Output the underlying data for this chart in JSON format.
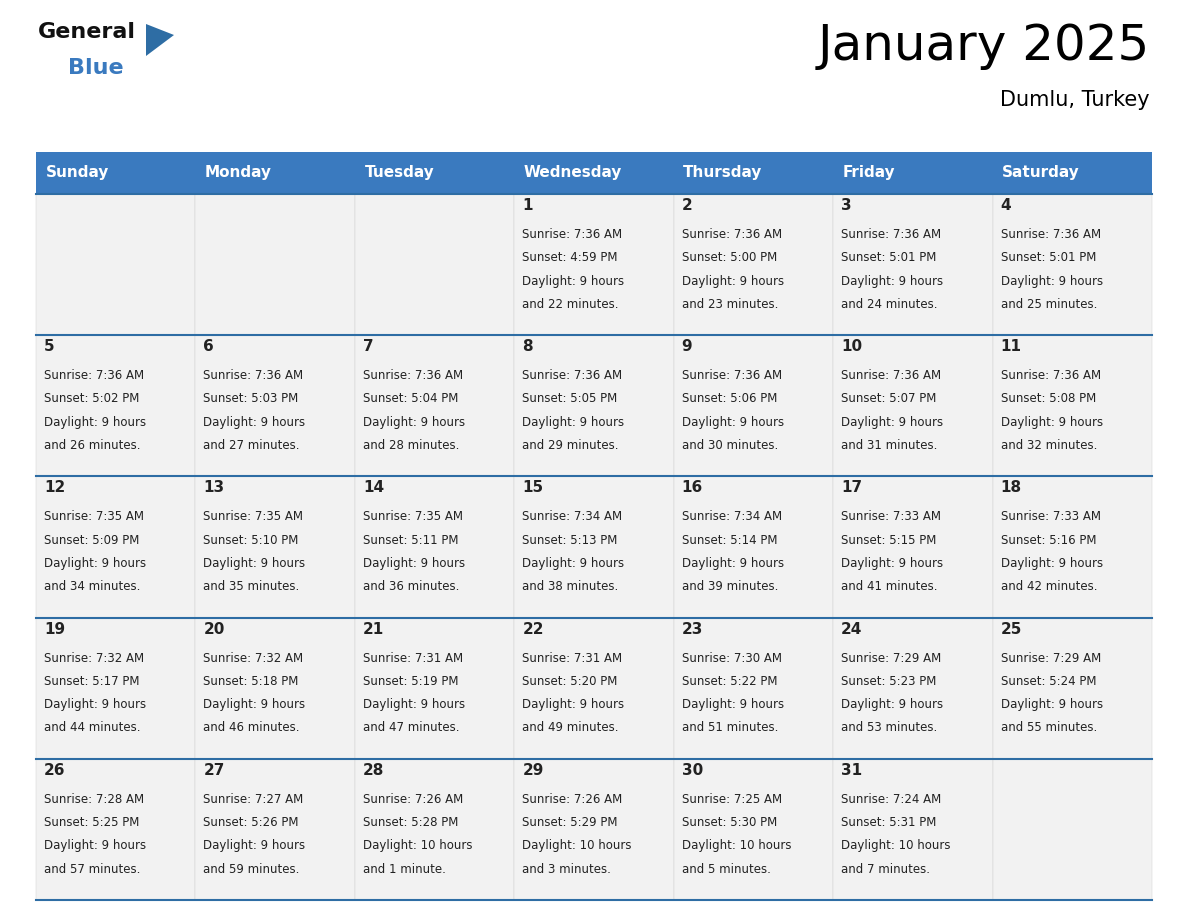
{
  "title": "January 2025",
  "subtitle": "Dumlu, Turkey",
  "header_color": "#3a7abf",
  "header_text_color": "#ffffff",
  "cell_bg_color": "#f2f2f2",
  "border_color": "#2e6da4",
  "text_color": "#222222",
  "days_of_week": [
    "Sunday",
    "Monday",
    "Tuesday",
    "Wednesday",
    "Thursday",
    "Friday",
    "Saturday"
  ],
  "calendar_data": [
    [
      {
        "day": null,
        "sunrise": null,
        "sunset": null,
        "daylight_line1": null,
        "daylight_line2": null
      },
      {
        "day": null,
        "sunrise": null,
        "sunset": null,
        "daylight_line1": null,
        "daylight_line2": null
      },
      {
        "day": null,
        "sunrise": null,
        "sunset": null,
        "daylight_line1": null,
        "daylight_line2": null
      },
      {
        "day": "1",
        "sunrise": "Sunrise: 7:36 AM",
        "sunset": "Sunset: 4:59 PM",
        "daylight_line1": "Daylight: 9 hours",
        "daylight_line2": "and 22 minutes."
      },
      {
        "day": "2",
        "sunrise": "Sunrise: 7:36 AM",
        "sunset": "Sunset: 5:00 PM",
        "daylight_line1": "Daylight: 9 hours",
        "daylight_line2": "and 23 minutes."
      },
      {
        "day": "3",
        "sunrise": "Sunrise: 7:36 AM",
        "sunset": "Sunset: 5:01 PM",
        "daylight_line1": "Daylight: 9 hours",
        "daylight_line2": "and 24 minutes."
      },
      {
        "day": "4",
        "sunrise": "Sunrise: 7:36 AM",
        "sunset": "Sunset: 5:01 PM",
        "daylight_line1": "Daylight: 9 hours",
        "daylight_line2": "and 25 minutes."
      }
    ],
    [
      {
        "day": "5",
        "sunrise": "Sunrise: 7:36 AM",
        "sunset": "Sunset: 5:02 PM",
        "daylight_line1": "Daylight: 9 hours",
        "daylight_line2": "and 26 minutes."
      },
      {
        "day": "6",
        "sunrise": "Sunrise: 7:36 AM",
        "sunset": "Sunset: 5:03 PM",
        "daylight_line1": "Daylight: 9 hours",
        "daylight_line2": "and 27 minutes."
      },
      {
        "day": "7",
        "sunrise": "Sunrise: 7:36 AM",
        "sunset": "Sunset: 5:04 PM",
        "daylight_line1": "Daylight: 9 hours",
        "daylight_line2": "and 28 minutes."
      },
      {
        "day": "8",
        "sunrise": "Sunrise: 7:36 AM",
        "sunset": "Sunset: 5:05 PM",
        "daylight_line1": "Daylight: 9 hours",
        "daylight_line2": "and 29 minutes."
      },
      {
        "day": "9",
        "sunrise": "Sunrise: 7:36 AM",
        "sunset": "Sunset: 5:06 PM",
        "daylight_line1": "Daylight: 9 hours",
        "daylight_line2": "and 30 minutes."
      },
      {
        "day": "10",
        "sunrise": "Sunrise: 7:36 AM",
        "sunset": "Sunset: 5:07 PM",
        "daylight_line1": "Daylight: 9 hours",
        "daylight_line2": "and 31 minutes."
      },
      {
        "day": "11",
        "sunrise": "Sunrise: 7:36 AM",
        "sunset": "Sunset: 5:08 PM",
        "daylight_line1": "Daylight: 9 hours",
        "daylight_line2": "and 32 minutes."
      }
    ],
    [
      {
        "day": "12",
        "sunrise": "Sunrise: 7:35 AM",
        "sunset": "Sunset: 5:09 PM",
        "daylight_line1": "Daylight: 9 hours",
        "daylight_line2": "and 34 minutes."
      },
      {
        "day": "13",
        "sunrise": "Sunrise: 7:35 AM",
        "sunset": "Sunset: 5:10 PM",
        "daylight_line1": "Daylight: 9 hours",
        "daylight_line2": "and 35 minutes."
      },
      {
        "day": "14",
        "sunrise": "Sunrise: 7:35 AM",
        "sunset": "Sunset: 5:11 PM",
        "daylight_line1": "Daylight: 9 hours",
        "daylight_line2": "and 36 minutes."
      },
      {
        "day": "15",
        "sunrise": "Sunrise: 7:34 AM",
        "sunset": "Sunset: 5:13 PM",
        "daylight_line1": "Daylight: 9 hours",
        "daylight_line2": "and 38 minutes."
      },
      {
        "day": "16",
        "sunrise": "Sunrise: 7:34 AM",
        "sunset": "Sunset: 5:14 PM",
        "daylight_line1": "Daylight: 9 hours",
        "daylight_line2": "and 39 minutes."
      },
      {
        "day": "17",
        "sunrise": "Sunrise: 7:33 AM",
        "sunset": "Sunset: 5:15 PM",
        "daylight_line1": "Daylight: 9 hours",
        "daylight_line2": "and 41 minutes."
      },
      {
        "day": "18",
        "sunrise": "Sunrise: 7:33 AM",
        "sunset": "Sunset: 5:16 PM",
        "daylight_line1": "Daylight: 9 hours",
        "daylight_line2": "and 42 minutes."
      }
    ],
    [
      {
        "day": "19",
        "sunrise": "Sunrise: 7:32 AM",
        "sunset": "Sunset: 5:17 PM",
        "daylight_line1": "Daylight: 9 hours",
        "daylight_line2": "and 44 minutes."
      },
      {
        "day": "20",
        "sunrise": "Sunrise: 7:32 AM",
        "sunset": "Sunset: 5:18 PM",
        "daylight_line1": "Daylight: 9 hours",
        "daylight_line2": "and 46 minutes."
      },
      {
        "day": "21",
        "sunrise": "Sunrise: 7:31 AM",
        "sunset": "Sunset: 5:19 PM",
        "daylight_line1": "Daylight: 9 hours",
        "daylight_line2": "and 47 minutes."
      },
      {
        "day": "22",
        "sunrise": "Sunrise: 7:31 AM",
        "sunset": "Sunset: 5:20 PM",
        "daylight_line1": "Daylight: 9 hours",
        "daylight_line2": "and 49 minutes."
      },
      {
        "day": "23",
        "sunrise": "Sunrise: 7:30 AM",
        "sunset": "Sunset: 5:22 PM",
        "daylight_line1": "Daylight: 9 hours",
        "daylight_line2": "and 51 minutes."
      },
      {
        "day": "24",
        "sunrise": "Sunrise: 7:29 AM",
        "sunset": "Sunset: 5:23 PM",
        "daylight_line1": "Daylight: 9 hours",
        "daylight_line2": "and 53 minutes."
      },
      {
        "day": "25",
        "sunrise": "Sunrise: 7:29 AM",
        "sunset": "Sunset: 5:24 PM",
        "daylight_line1": "Daylight: 9 hours",
        "daylight_line2": "and 55 minutes."
      }
    ],
    [
      {
        "day": "26",
        "sunrise": "Sunrise: 7:28 AM",
        "sunset": "Sunset: 5:25 PM",
        "daylight_line1": "Daylight: 9 hours",
        "daylight_line2": "and 57 minutes."
      },
      {
        "day": "27",
        "sunrise": "Sunrise: 7:27 AM",
        "sunset": "Sunset: 5:26 PM",
        "daylight_line1": "Daylight: 9 hours",
        "daylight_line2": "and 59 minutes."
      },
      {
        "day": "28",
        "sunrise": "Sunrise: 7:26 AM",
        "sunset": "Sunset: 5:28 PM",
        "daylight_line1": "Daylight: 10 hours",
        "daylight_line2": "and 1 minute."
      },
      {
        "day": "29",
        "sunrise": "Sunrise: 7:26 AM",
        "sunset": "Sunset: 5:29 PM",
        "daylight_line1": "Daylight: 10 hours",
        "daylight_line2": "and 3 minutes."
      },
      {
        "day": "30",
        "sunrise": "Sunrise: 7:25 AM",
        "sunset": "Sunset: 5:30 PM",
        "daylight_line1": "Daylight: 10 hours",
        "daylight_line2": "and 5 minutes."
      },
      {
        "day": "31",
        "sunrise": "Sunrise: 7:24 AM",
        "sunset": "Sunset: 5:31 PM",
        "daylight_line1": "Daylight: 10 hours",
        "daylight_line2": "and 7 minutes."
      },
      {
        "day": null,
        "sunrise": null,
        "sunset": null,
        "daylight_line1": null,
        "daylight_line2": null
      }
    ]
  ],
  "logo_general_color": "#111111",
  "logo_blue_color": "#3a7abf",
  "logo_triangle_color": "#2e6da4",
  "title_fontsize": 36,
  "subtitle_fontsize": 15,
  "header_fontsize": 11,
  "day_number_fontsize": 11,
  "cell_text_fontsize": 8.5
}
